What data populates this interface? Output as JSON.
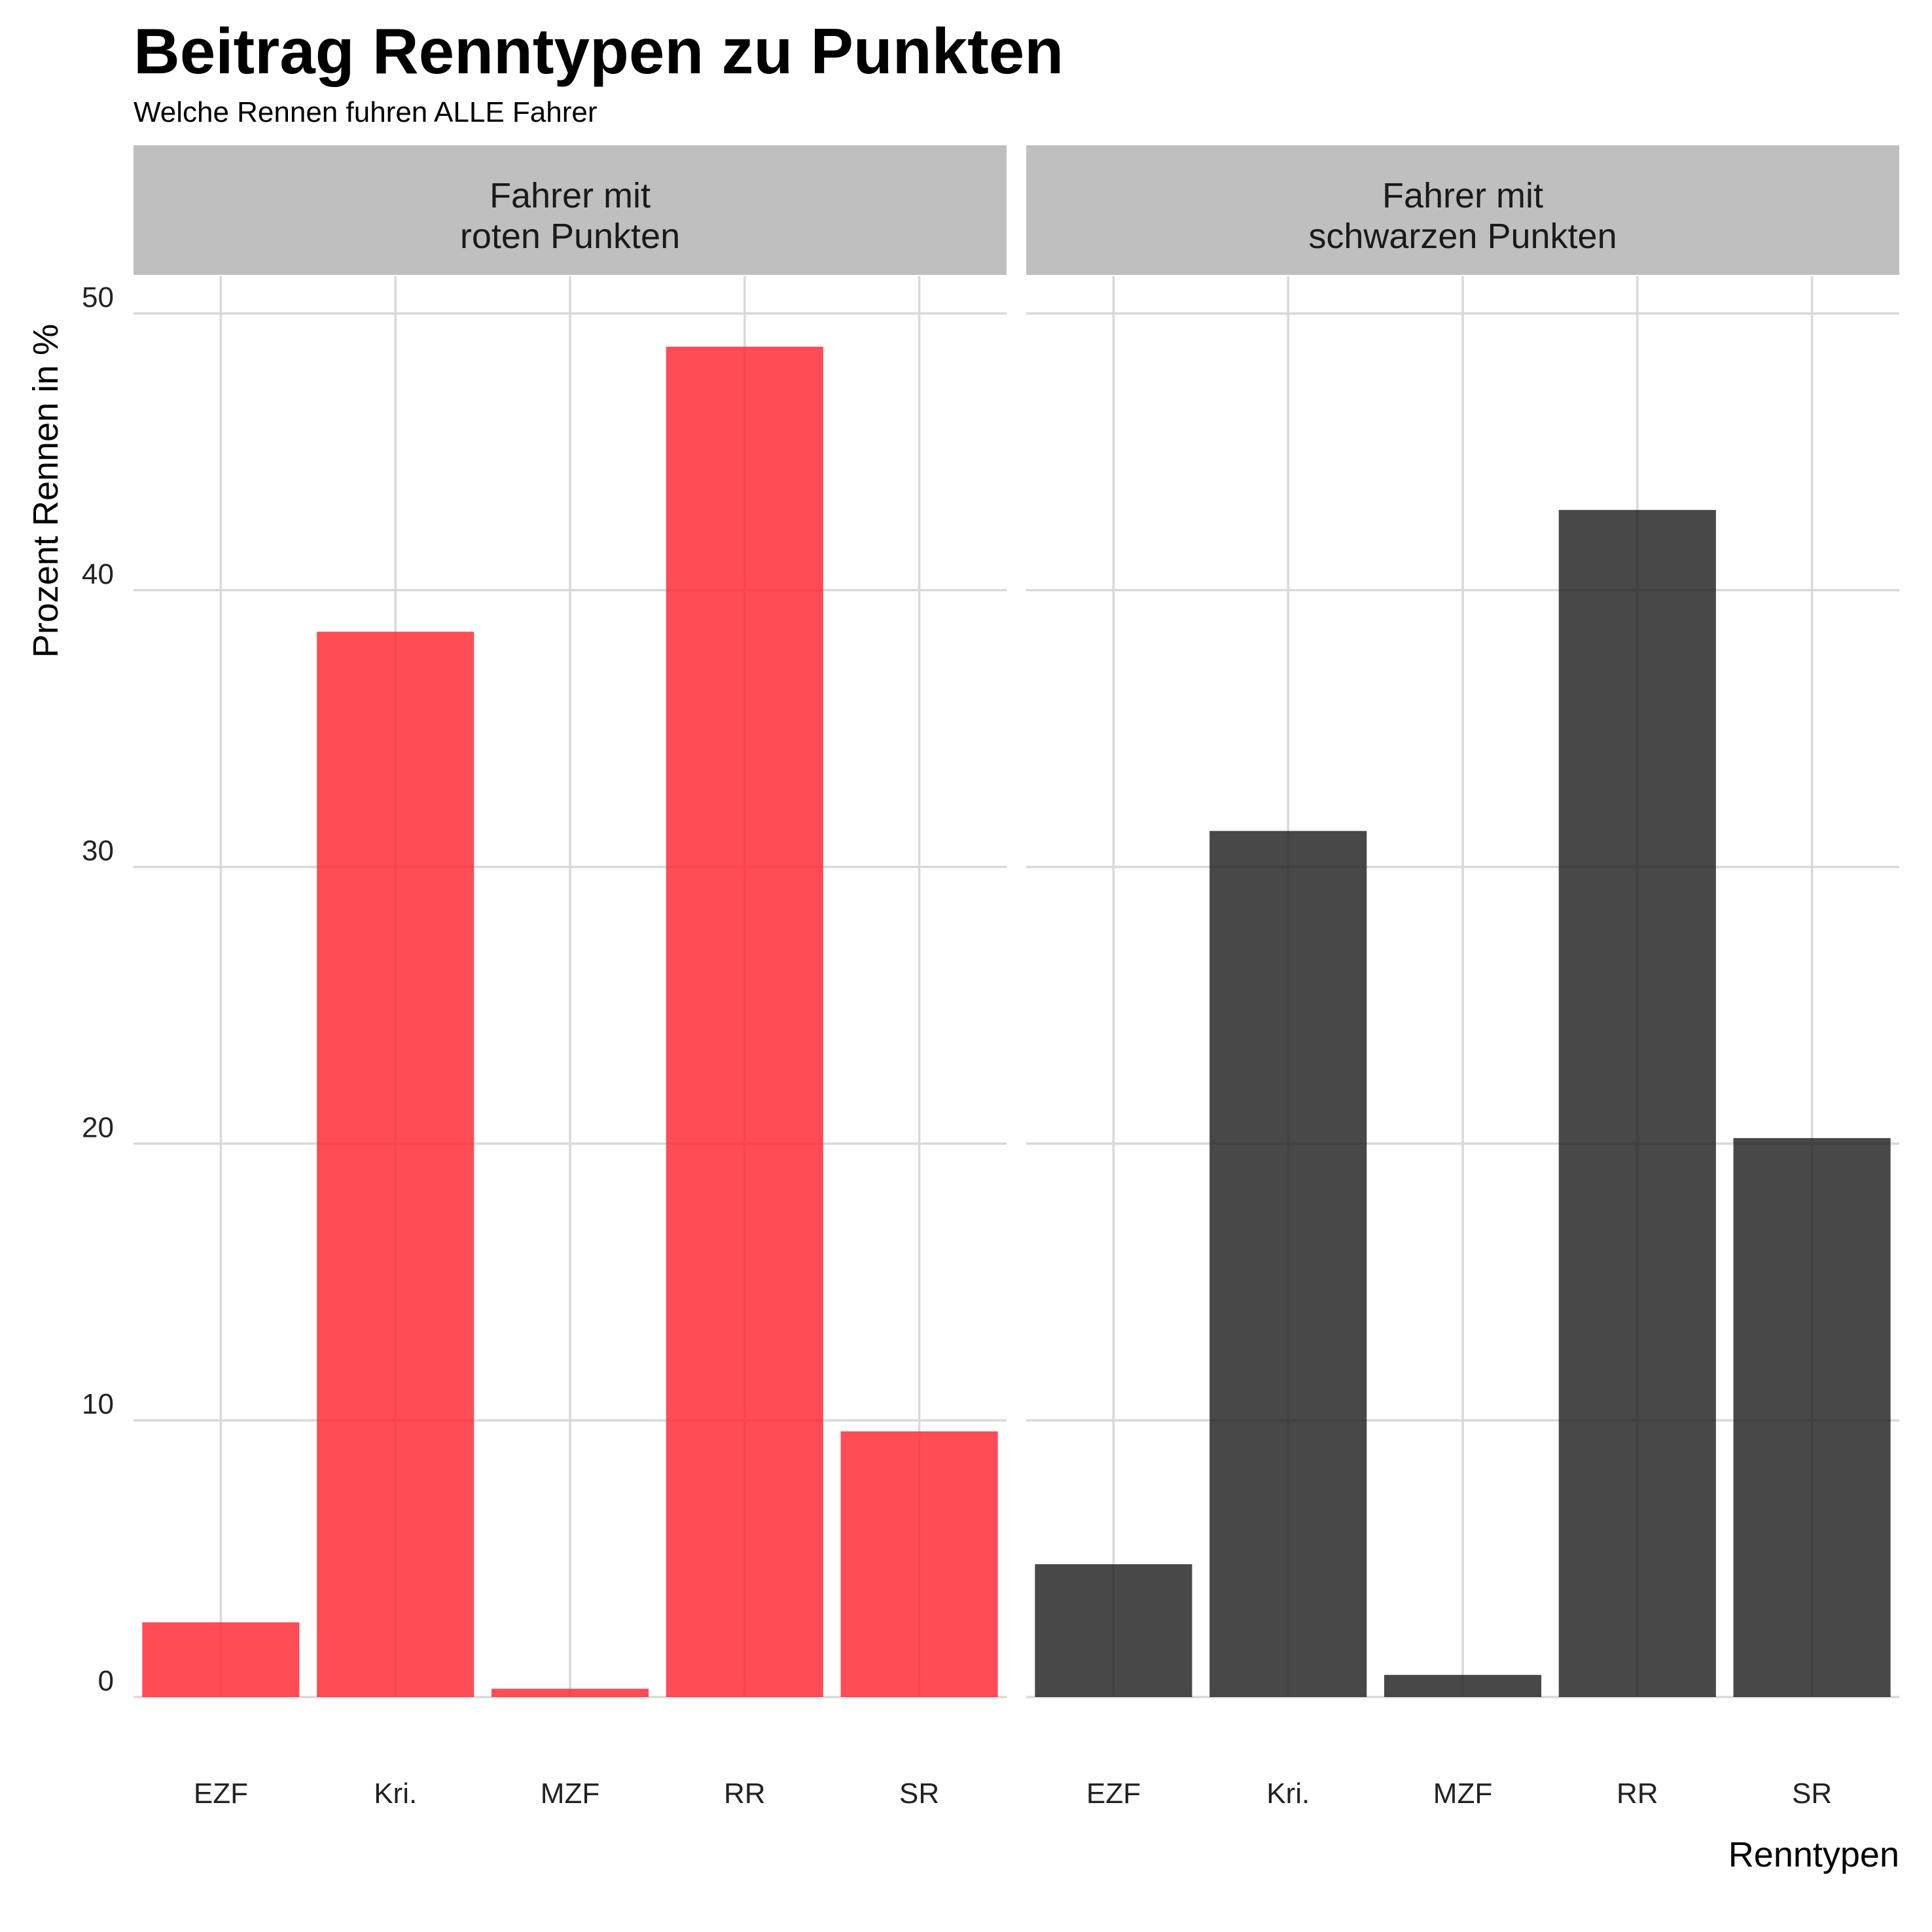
{
  "chart_data": {
    "type": "bar",
    "title": "Beitrag Renntypen zu Punkten",
    "subtitle": "Welche Rennen fuhren ALLE Fahrer",
    "xlabel": "Renntypen",
    "ylabel": "Prozent Rennen in %",
    "categories": [
      "EZF",
      "Kri.",
      "MZF",
      "RR",
      "SR"
    ],
    "y_ticks": [
      0,
      10,
      20,
      30,
      40,
      50
    ],
    "ylim": [
      0,
      50
    ],
    "grid": true,
    "legend": "none",
    "facets": [
      {
        "label_lines": [
          "Fahrer mit",
          "roten Punkten"
        ],
        "color": "#ff1f2b",
        "values": [
          2.7,
          38.5,
          0.3,
          48.8,
          9.6
        ]
      },
      {
        "label_lines": [
          "Fahrer mit",
          "schwarzen Punkten"
        ],
        "color": "#1a1a1a",
        "values": [
          4.8,
          31.3,
          0.8,
          42.9,
          20.2
        ]
      }
    ]
  }
}
